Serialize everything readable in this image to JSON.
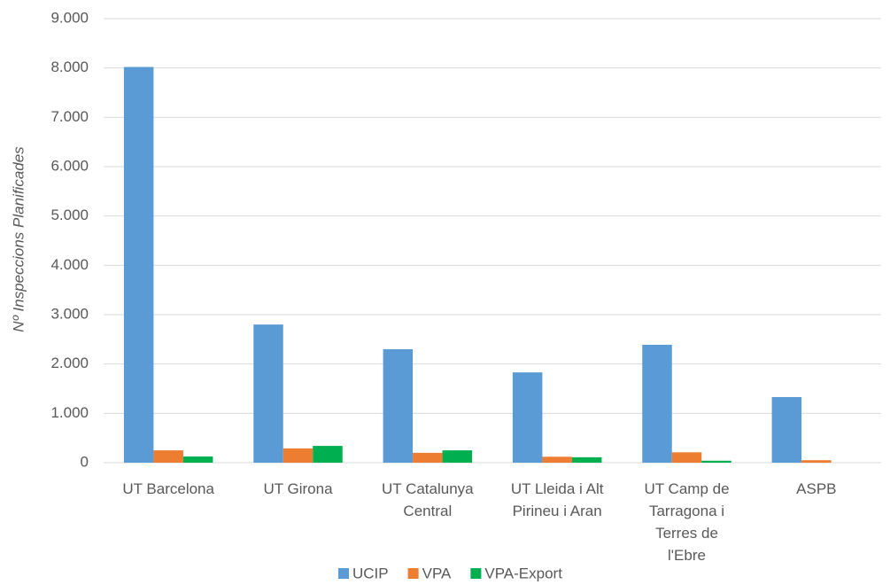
{
  "chart_data": {
    "type": "bar",
    "y_label": "Nº Inspeccions Planificades",
    "categories": [
      "UT Barcelona",
      "UT Girona",
      "UT Catalunya Central",
      "UT Lleida i Alt Pirineu i Aran",
      "UT Camp de Tarragona i Terres de l'Ebre",
      "ASPB"
    ],
    "series": [
      {
        "name": "UCIP",
        "color": "#5b9bd5",
        "values": [
          8020,
          2800,
          2300,
          1830,
          2390,
          1330
        ]
      },
      {
        "name": "VPA",
        "color": "#ed7d31",
        "values": [
          250,
          290,
          200,
          120,
          210,
          50
        ]
      },
      {
        "name": "VPA-Export",
        "color": "#00b050",
        "values": [
          125,
          340,
          250,
          110,
          40,
          0
        ]
      }
    ],
    "ylim": [
      0,
      9000
    ],
    "yticks": [
      0,
      {
        "value": 1000,
        "label": "1.000"
      },
      {
        "value": 2000,
        "label": "2.000"
      },
      {
        "value": 3000,
        "label": "3.000"
      },
      {
        "value": 4000,
        "label": "4.000"
      },
      {
        "value": 5000,
        "label": "5.000"
      },
      {
        "value": 6000,
        "label": "6.000"
      },
      {
        "value": 7000,
        "label": "7.000"
      },
      {
        "value": 8000,
        "label": "8.000"
      },
      {
        "value": 9000,
        "label": "9.000"
      }
    ],
    "grid": true,
    "legend": "bottom"
  }
}
